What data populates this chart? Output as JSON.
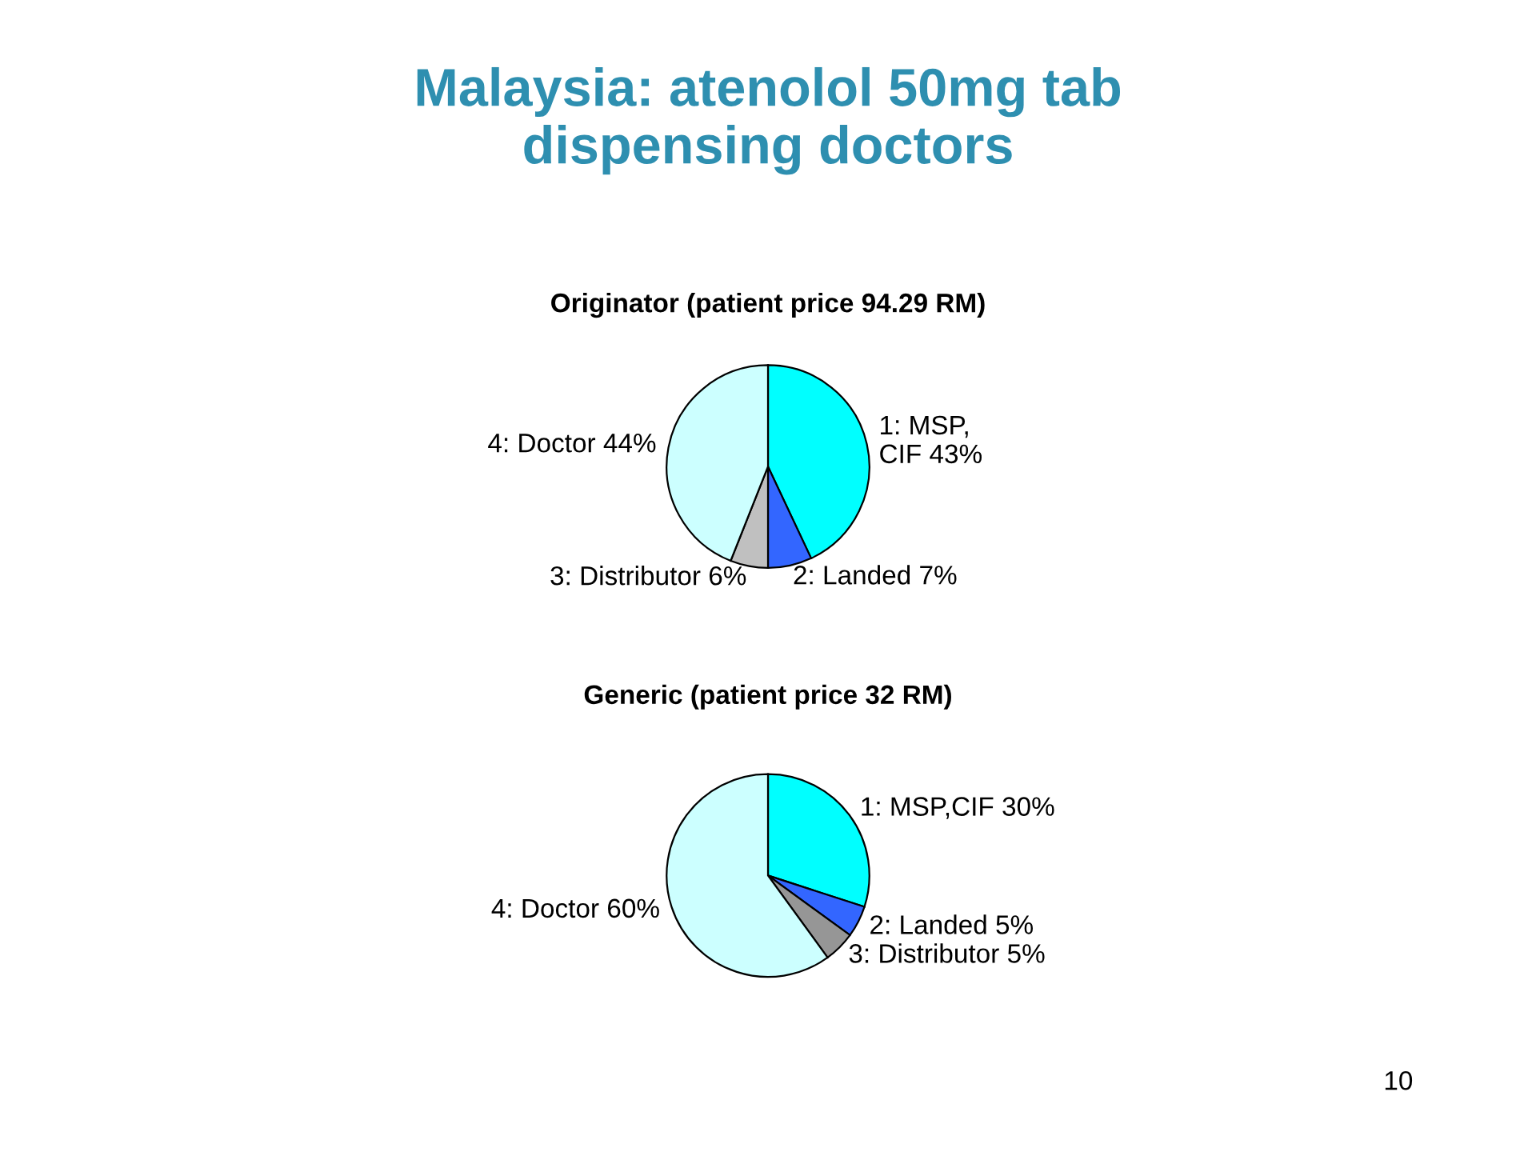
{
  "chart_data": [
    {
      "type": "pie",
      "title": "Malaysia: atenolol 50mg tab\ndispensing doctors",
      "subtitle": "Originator (patient price 94.29 RM)",
      "categories": [
        "1: MSP,\nCIF",
        "2: Landed",
        "3: Distributor",
        "4: Doctor"
      ],
      "values": [
        43,
        7,
        6,
        44
      ],
      "value_labels": [
        "43%",
        "7%",
        "6%",
        "44%"
      ],
      "colors": [
        "#00ffff",
        "#3366ff",
        "#c0c0c0",
        "#ccffff"
      ]
    },
    {
      "type": "pie",
      "title": "Generic (patient price 32 RM)",
      "categories": [
        "1: MSP,CIF",
        "2: Landed",
        "3: Distributor",
        "4: Doctor"
      ],
      "values": [
        30,
        5,
        5,
        60
      ],
      "value_labels": [
        "30%",
        "5%",
        "5%",
        "60%"
      ],
      "colors": [
        "#00ffff",
        "#3366ff",
        "#969696",
        "#ccffff"
      ],
      "annotations": [
        "10"
      ]
    }
  ]
}
